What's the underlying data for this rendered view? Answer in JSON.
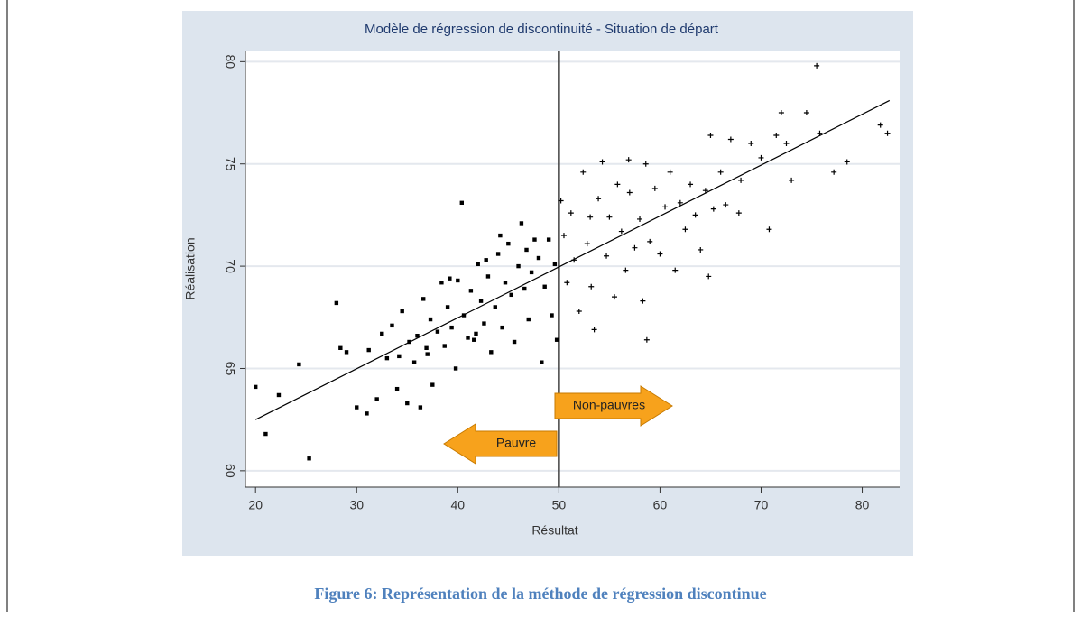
{
  "chart_data": {
    "type": "scatter",
    "title": "Modèle de régression de discontinuité - Situation de départ",
    "xlabel": "Résultat",
    "ylabel": "Réalisation",
    "xlim": [
      19,
      83.7
    ],
    "ylim": [
      59.2,
      80.5
    ],
    "xticks": [
      20,
      30,
      40,
      50,
      60,
      70,
      80
    ],
    "yticks": [
      60,
      65,
      70,
      75,
      80
    ],
    "grid": true,
    "cutoff": 50,
    "annotations": [
      "Pauvre",
      "Non-pauvres"
    ],
    "fit": {
      "x": [
        20,
        82.7
      ],
      "y": [
        62.5,
        78.1
      ],
      "color": "#000000"
    },
    "series": [
      {
        "marker": "square",
        "color": "#000000",
        "x": [
          20,
          21,
          22.3,
          24.3,
          25.3,
          28,
          28.4,
          29,
          30,
          31,
          31.2,
          32,
          32.5,
          33,
          33.5,
          34,
          34.2,
          34.5,
          35,
          35.2,
          35.7,
          36,
          36.3,
          36.6,
          37,
          37.3,
          37.5,
          38,
          38.4,
          38.7,
          39,
          39.4,
          39.8,
          40,
          40.4,
          40.6,
          41,
          41.3,
          41.6,
          42,
          42.3,
          42.6,
          43,
          43.3,
          43.7,
          44,
          44.4,
          44.7,
          45,
          45.3,
          45.6,
          46,
          46.3,
          46.6,
          47,
          47.3,
          47.6,
          48,
          48.3,
          48.6,
          49,
          49.3,
          49.6,
          49.8,
          46.8,
          44.2,
          42.8,
          39.2,
          36.9,
          41.8
        ],
        "y": [
          64.1,
          61.8,
          63.7,
          65.2,
          60.6,
          68.2,
          66,
          65.8,
          63.1,
          62.8,
          65.9,
          63.5,
          66.7,
          65.5,
          67.1,
          64,
          65.6,
          67.8,
          63.3,
          66.3,
          65.3,
          66.6,
          63.1,
          68.4,
          65.7,
          67.4,
          64.2,
          66.8,
          69.2,
          66.1,
          68,
          67,
          65,
          69.3,
          73.1,
          67.6,
          66.5,
          68.8,
          66.4,
          70.1,
          68.3,
          67.2,
          69.5,
          65.8,
          68,
          70.6,
          67,
          69.2,
          71.1,
          68.6,
          66.3,
          70,
          72.1,
          68.9,
          67.4,
          69.7,
          71.3,
          70.4,
          65.3,
          69,
          71.3,
          67.6,
          70.1,
          66.4,
          70.8,
          71.5,
          70.3,
          69.4,
          66,
          66.7
        ]
      },
      {
        "marker": "plus",
        "color": "#000000",
        "x": [
          50.2,
          50.5,
          50.8,
          51.2,
          51.5,
          52,
          52.4,
          52.8,
          53.2,
          53.5,
          53.9,
          54.3,
          54.7,
          55,
          55.5,
          55.8,
          56.2,
          56.6,
          57,
          57.5,
          58,
          58.3,
          58.6,
          59,
          59.5,
          60,
          60.5,
          61,
          61.5,
          62,
          62.5,
          63,
          63.5,
          64,
          64.5,
          65,
          65.3,
          66,
          66.5,
          67,
          68,
          69,
          70,
          70.8,
          71.5,
          72,
          72.5,
          73,
          74.5,
          75.5,
          75.8,
          77.2,
          78.5,
          81.8,
          82.5,
          64.8,
          58.7,
          56.9,
          53.1,
          67.8
        ],
        "y": [
          73.2,
          71.5,
          69.2,
          72.6,
          70.3,
          67.8,
          74.6,
          71.1,
          69,
          66.9,
          73.3,
          75.1,
          70.5,
          72.4,
          68.5,
          74,
          71.7,
          69.8,
          73.6,
          70.9,
          72.3,
          68.3,
          75,
          71.2,
          73.8,
          70.6,
          72.9,
          74.6,
          69.8,
          73.1,
          71.8,
          74,
          72.5,
          70.8,
          73.7,
          76.4,
          72.8,
          74.6,
          73,
          76.2,
          74.2,
          76,
          75.3,
          71.8,
          76.4,
          77.5,
          76,
          74.2,
          77.5,
          79.8,
          76.5,
          74.6,
          75.1,
          76.9,
          76.5,
          69.5,
          66.4,
          75.2,
          72.4,
          72.6
        ]
      }
    ]
  },
  "caption": "Figure 6: Représentation de la méthode de régression discontinue"
}
